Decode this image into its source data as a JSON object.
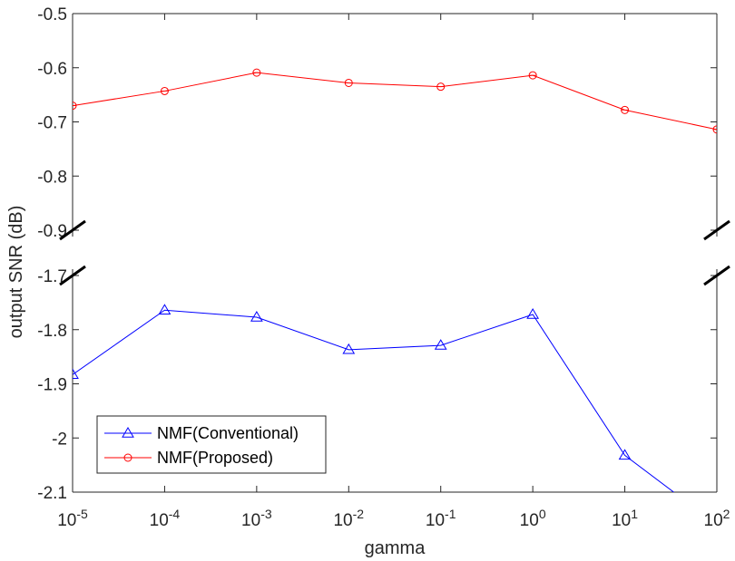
{
  "chart_data": {
    "type": "line",
    "xlabel": "gamma",
    "ylabel": "output SNR (dB)",
    "x_scale": "log",
    "x": [
      1e-05,
      0.0001,
      0.001,
      0.01,
      0.1,
      1,
      10,
      100
    ],
    "x_tick_labels": [
      {
        "base": "10",
        "exp": "-5"
      },
      {
        "base": "10",
        "exp": "-4"
      },
      {
        "base": "10",
        "exp": "-3"
      },
      {
        "base": "10",
        "exp": "-2"
      },
      {
        "base": "10",
        "exp": "-1"
      },
      {
        "base": "10",
        "exp": "0"
      },
      {
        "base": "10",
        "exp": "1"
      },
      {
        "base": "10",
        "exp": "2"
      }
    ],
    "broken_y_axis": true,
    "y_segments": [
      {
        "ylim": [
          -0.9,
          -0.5
        ],
        "ticks": [
          "-0.5",
          "-0.6",
          "-0.7",
          "-0.8",
          "-0.9"
        ]
      },
      {
        "ylim": [
          -2.1,
          -1.7
        ],
        "ticks": [
          "-1.7",
          "-1.8",
          "-1.9",
          "-2",
          "-2.1"
        ]
      }
    ],
    "series": [
      {
        "name": "NMF(Conventional)",
        "color": "#0000ff",
        "marker": "triangle",
        "values": [
          -1.883,
          -1.764,
          -1.777,
          -1.837,
          -1.829,
          -1.772,
          -2.032,
          -2.16
        ]
      },
      {
        "name": "NMF(Proposed)",
        "color": "#ff0000",
        "marker": "circle",
        "values": [
          -0.67,
          -0.643,
          -0.609,
          -0.628,
          -0.635,
          -0.614,
          -0.678,
          -0.714
        ]
      }
    ],
    "legend_position": "bottom-left",
    "grid": false
  }
}
